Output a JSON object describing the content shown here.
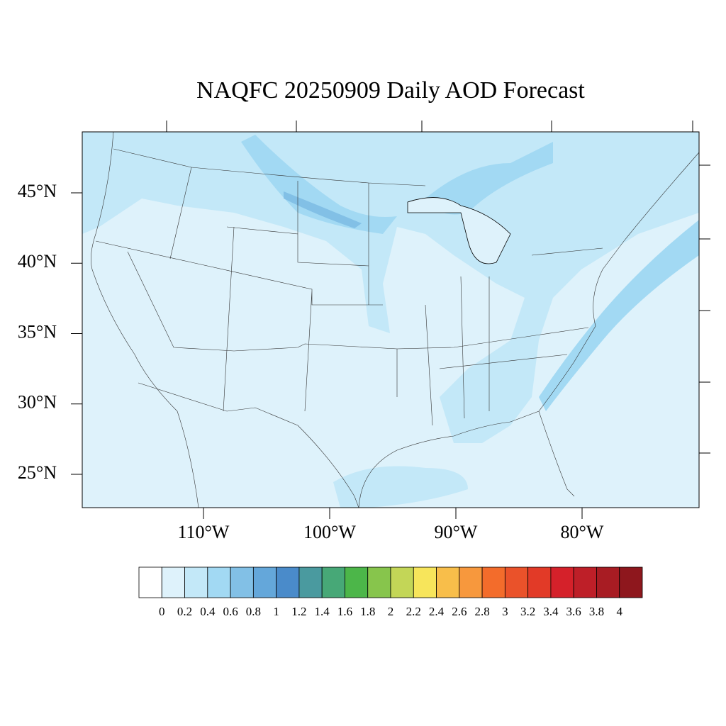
{
  "chart_data": {
    "type": "filled-contour-map",
    "title": "NAQFC 20250909 Daily AOD Forecast",
    "yticks": [
      {
        "value": 45,
        "label": "45°N"
      },
      {
        "value": 40,
        "label": "40°N"
      },
      {
        "value": 35,
        "label": "35°N"
      },
      {
        "value": 30,
        "label": "30°N"
      },
      {
        "value": 25,
        "label": "25°N"
      }
    ],
    "xticks": [
      {
        "value": -110,
        "label": "110°W"
      },
      {
        "value": -100,
        "label": "100°W"
      },
      {
        "value": -90,
        "label": "90°W"
      },
      {
        "value": -80,
        "label": "80°W"
      }
    ],
    "colorbar": {
      "levels": [
        0,
        0.2,
        0.4,
        0.6,
        0.8,
        1,
        1.2,
        1.4,
        1.6,
        1.8,
        2,
        2.2,
        2.4,
        2.6,
        2.8,
        3,
        3.2,
        3.4,
        3.6,
        3.8,
        4
      ],
      "colors": [
        "#ffffff",
        "#def2fb",
        "#c3e8f8",
        "#a2d9f3",
        "#82c0e6",
        "#64a7da",
        "#4a8bca",
        "#4a9a9f",
        "#47a877",
        "#4cb649",
        "#87c54c",
        "#c3d657",
        "#f7e55b",
        "#f8be4a",
        "#f7983d",
        "#f36c2b",
        "#ea522a",
        "#e23a27",
        "#d5212a",
        "#be1f28",
        "#a81c23",
        "#8e171d"
      ]
    }
  }
}
